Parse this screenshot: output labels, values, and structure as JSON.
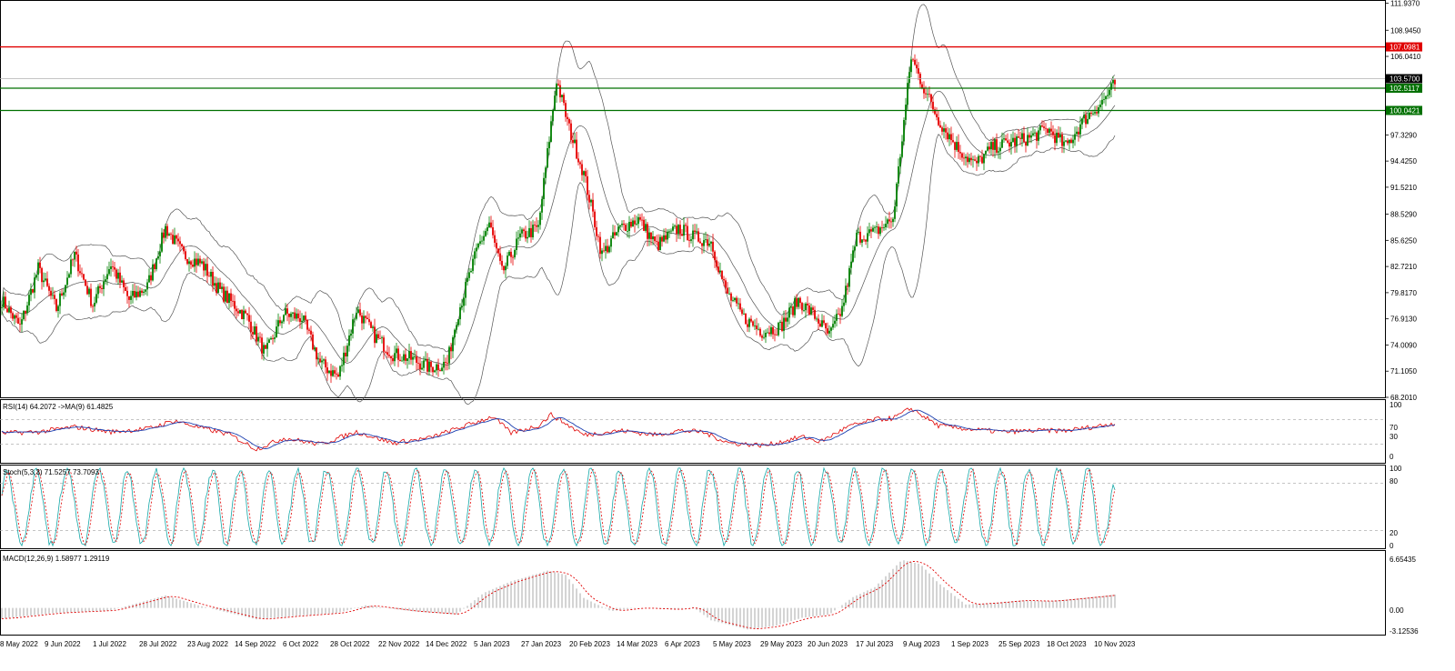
{
  "colors": {
    "up": "#008000",
    "down": "#e60000",
    "band": "#555555",
    "red_line": "#e00000",
    "green_line": "#007000",
    "rsi": "#e00000",
    "rsi_ma": "#1c3fb0",
    "stoch_main": "#14a8a8",
    "stoch_signal": "#e00000",
    "macd_hist": "#a0a0a0",
    "macd_signal": "#e00000",
    "current_price_bg": "#000000"
  },
  "chart_data": [
    {
      "type": "candlestick",
      "title": "",
      "x_dates": [
        "8 May 2022",
        "9 Jun 2022",
        "1 Jul 2022",
        "28 Jul 2022",
        "23 Aug 2022",
        "14 Sep 2022",
        "6 Oct 2022",
        "28 Oct 2022",
        "22 Nov 2022",
        "14 Dec 2022",
        "5 Jan 2023",
        "27 Jan 2023",
        "20 Feb 2023",
        "14 Mar 2023",
        "6 Apr 2023",
        "5 May 2023",
        "29 May 2023",
        "20 Jun 2023",
        "17 Jul 2023",
        "9 Aug 2023",
        "1 Sep 2023",
        "25 Sep 2023",
        "18 Oct 2023",
        "10 Nov 2023"
      ],
      "y_ticks": [
        "111.9370",
        "108.9450",
        "106.0410",
        "103.5700",
        "100.0421",
        "97.3290",
        "94.4250",
        "91.5210",
        "88.5290",
        "85.6250",
        "82.7210",
        "79.8170",
        "76.9130",
        "74.0090",
        "71.1050",
        "68.2010"
      ],
      "ylim": [
        68.201,
        112.2
      ],
      "close_anchors": [
        [
          0,
          79.0
        ],
        [
          10,
          76.0
        ],
        [
          20,
          82.5
        ],
        [
          30,
          78.0
        ],
        [
          40,
          84.0
        ],
        [
          50,
          78.5
        ],
        [
          60,
          83.0
        ],
        [
          70,
          79.0
        ],
        [
          80,
          80.5
        ],
        [
          90,
          87.0
        ],
        [
          100,
          84.0
        ],
        [
          110,
          83.0
        ],
        [
          120,
          80.0
        ],
        [
          135,
          77.0
        ],
        [
          145,
          73.0
        ],
        [
          155,
          77.5
        ],
        [
          165,
          77.0
        ],
        [
          175,
          72.0
        ],
        [
          185,
          70.5
        ],
        [
          195,
          78.0
        ],
        [
          205,
          75.0
        ],
        [
          215,
          73.0
        ],
        [
          225,
          72.5
        ],
        [
          235,
          71.5
        ],
        [
          245,
          72.0
        ],
        [
          250,
          77.0
        ],
        [
          262,
          85.0
        ],
        [
          268,
          87.5
        ],
        [
          275,
          82.0
        ],
        [
          285,
          86.0
        ],
        [
          295,
          87.0
        ],
        [
          305,
          103.5
        ],
        [
          312,
          98.0
        ],
        [
          320,
          93.0
        ],
        [
          330,
          84.0
        ],
        [
          340,
          87.0
        ],
        [
          350,
          88.0
        ],
        [
          360,
          85.0
        ],
        [
          372,
          87.0
        ],
        [
          380,
          86.0
        ],
        [
          390,
          85.5
        ],
        [
          398,
          80.0
        ],
        [
          408,
          77.0
        ],
        [
          418,
          75.5
        ],
        [
          428,
          76.0
        ],
        [
          438,
          79.0
        ],
        [
          448,
          77.0
        ],
        [
          455,
          75.0
        ],
        [
          462,
          78.0
        ],
        [
          470,
          86.0
        ],
        [
          480,
          86.5
        ],
        [
          490,
          88.0
        ],
        [
          500,
          106.0
        ],
        [
          506,
          103.0
        ],
        [
          515,
          99.0
        ],
        [
          525,
          96.0
        ],
        [
          535,
          94.0
        ],
        [
          545,
          96.0
        ],
        [
          555,
          96.5
        ],
        [
          565,
          97.0
        ],
        [
          575,
          98.0
        ],
        [
          585,
          96.0
        ],
        [
          595,
          99.0
        ],
        [
          605,
          101.0
        ],
        [
          612,
          103.0
        ]
      ],
      "horizontal_levels": [
        {
          "value": 107.0981,
          "label": "107.0981",
          "color": "red"
        },
        {
          "value": 103.57,
          "label": "103.5700",
          "color": "black"
        },
        {
          "value": 102.5117,
          "label": "102.5117",
          "color": "green"
        },
        {
          "value": 100.0421,
          "label": "100.0421",
          "color": "green"
        }
      ]
    },
    {
      "type": "line",
      "title": "RSI(14) 64.2072 ->MA(9) 61.4825",
      "y_ticks": [
        "100",
        "70",
        "30",
        "0"
      ],
      "ylim": [
        0,
        100
      ],
      "levels": [
        70,
        30
      ],
      "anchors": [
        [
          0,
          48
        ],
        [
          20,
          50
        ],
        [
          40,
          58
        ],
        [
          60,
          50
        ],
        [
          80,
          55
        ],
        [
          95,
          68
        ],
        [
          110,
          56
        ],
        [
          125,
          46
        ],
        [
          140,
          22
        ],
        [
          155,
          40
        ],
        [
          175,
          30
        ],
        [
          195,
          50
        ],
        [
          215,
          32
        ],
        [
          235,
          40
        ],
        [
          250,
          55
        ],
        [
          270,
          75
        ],
        [
          280,
          48
        ],
        [
          295,
          60
        ],
        [
          302,
          78
        ],
        [
          320,
          45
        ],
        [
          340,
          52
        ],
        [
          360,
          45
        ],
        [
          372,
          52
        ],
        [
          385,
          50
        ],
        [
          400,
          32
        ],
        [
          420,
          28
        ],
        [
          440,
          42
        ],
        [
          450,
          34
        ],
        [
          465,
          58
        ],
        [
          480,
          70
        ],
        [
          490,
          72
        ],
        [
          500,
          88
        ],
        [
          515,
          60
        ],
        [
          530,
          55
        ],
        [
          550,
          50
        ],
        [
          570,
          52
        ],
        [
          585,
          52
        ],
        [
          600,
          58
        ],
        [
          612,
          64
        ]
      ],
      "last_value": 64.2072,
      "ma_value": 61.4825
    },
    {
      "type": "line",
      "title": "Stoch(5,3,3) 71.5257 73.7093",
      "y_ticks": [
        "100",
        "80",
        "20",
        "0"
      ],
      "ylim": [
        0,
        100
      ],
      "levels": [
        80,
        20
      ],
      "last_main": 71.5257,
      "last_signal": 73.7093
    },
    {
      "type": "bar",
      "title": "MACD(12,26,9) 1.58977 1.29119",
      "y_ticks": [
        "6.65435",
        "0.00",
        "-3.12536"
      ],
      "ylim": [
        -3.12536,
        6.65435
      ],
      "anchors": [
        [
          0,
          -1.3
        ],
        [
          30,
          -0.6
        ],
        [
          60,
          -0.3
        ],
        [
          90,
          1.5
        ],
        [
          110,
          0.2
        ],
        [
          140,
          -1.4
        ],
        [
          160,
          -1.0
        ],
        [
          185,
          -0.6
        ],
        [
          200,
          0.3
        ],
        [
          225,
          -0.4
        ],
        [
          250,
          -0.8
        ],
        [
          265,
          1.8
        ],
        [
          280,
          3.2
        ],
        [
          300,
          4.5
        ],
        [
          310,
          4.0
        ],
        [
          320,
          1.2
        ],
        [
          335,
          -0.4
        ],
        [
          350,
          0.0
        ],
        [
          370,
          -0.2
        ],
        [
          380,
          0.1
        ],
        [
          390,
          -1.5
        ],
        [
          410,
          -2.6
        ],
        [
          425,
          -2.2
        ],
        [
          440,
          -1.2
        ],
        [
          455,
          -0.8
        ],
        [
          468,
          1.3
        ],
        [
          480,
          2.5
        ],
        [
          495,
          5.8
        ],
        [
          505,
          5.3
        ],
        [
          515,
          3.0
        ],
        [
          530,
          0.4
        ],
        [
          545,
          0.6
        ],
        [
          560,
          0.9
        ],
        [
          575,
          0.8
        ],
        [
          590,
          1.1
        ],
        [
          612,
          1.6
        ]
      ],
      "last_macd": 1.58977,
      "last_signal": 1.29119
    }
  ]
}
